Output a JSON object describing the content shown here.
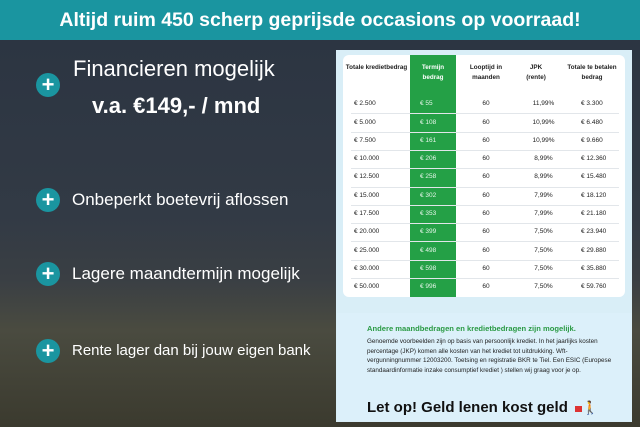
{
  "banner": {
    "text": "Altijd ruim 450 scherp geprijsde occasions op voorraad!"
  },
  "left": {
    "headline": "Financieren mogelijk",
    "price": "v.a. €149,- / mnd",
    "bullets": [
      "Onbeperkt boetevrij aflossen",
      "Lagere maandtermijn mogelijk",
      "Rente lager dan bij jouw eigen bank"
    ],
    "bullet_icon": "plus-icon",
    "accent": "#1a95a0"
  },
  "table": {
    "headers": [
      "Totale kredietbedrag",
      "Termijn bedrag",
      "Looptijd in maanden",
      "JPK (rente)",
      "Totale te betalen bedrag"
    ],
    "highlight_color": "#24a046",
    "rows": [
      [
        "€ 2.500",
        "€ 55",
        "60",
        "11,99%",
        "€ 3.300"
      ],
      [
        "€ 5.000",
        "€ 108",
        "60",
        "10,99%",
        "€ 6.480"
      ],
      [
        "€ 7.500",
        "€ 161",
        "60",
        "10,99%",
        "€ 9.660"
      ],
      [
        "€ 10.000",
        "€ 206",
        "60",
        "8,99%",
        "€ 12.360"
      ],
      [
        "€ 12.500",
        "€ 258",
        "60",
        "8,99%",
        "€ 15.480"
      ],
      [
        "€ 15.000",
        "€ 302",
        "60",
        "7,99%",
        "€ 18.120"
      ],
      [
        "€ 17.500",
        "€ 353",
        "60",
        "7,99%",
        "€ 21.180"
      ],
      [
        "€ 20.000",
        "€ 399",
        "60",
        "7,50%",
        "€ 23.940"
      ],
      [
        "€ 25.000",
        "€ 498",
        "60",
        "7,50%",
        "€ 29.880"
      ],
      [
        "€ 30.000",
        "€ 598",
        "60",
        "7,50%",
        "€ 35.880"
      ],
      [
        "€ 50.000",
        "€ 996",
        "60",
        "7,50%",
        "€ 59.760"
      ]
    ]
  },
  "notes": {
    "title": "Andere maandbedragen en kredietbedragen zijn mogelijk.",
    "body": "Genoemde voorbeelden zijn op basis van persoonlijk krediet. In het jaarlijks kosten percentage (JKP) komen alle kosten van het krediet tot uitdrukking. Wft-vergunningnummer 12003200. Toetsing en registratie BKR te Tiel. Een ESIC (Europese standaardinformatie inzake consumptief krediet ) stellen wij graag voor je op.",
    "warning": "Let op! Geld lenen kost geld"
  }
}
